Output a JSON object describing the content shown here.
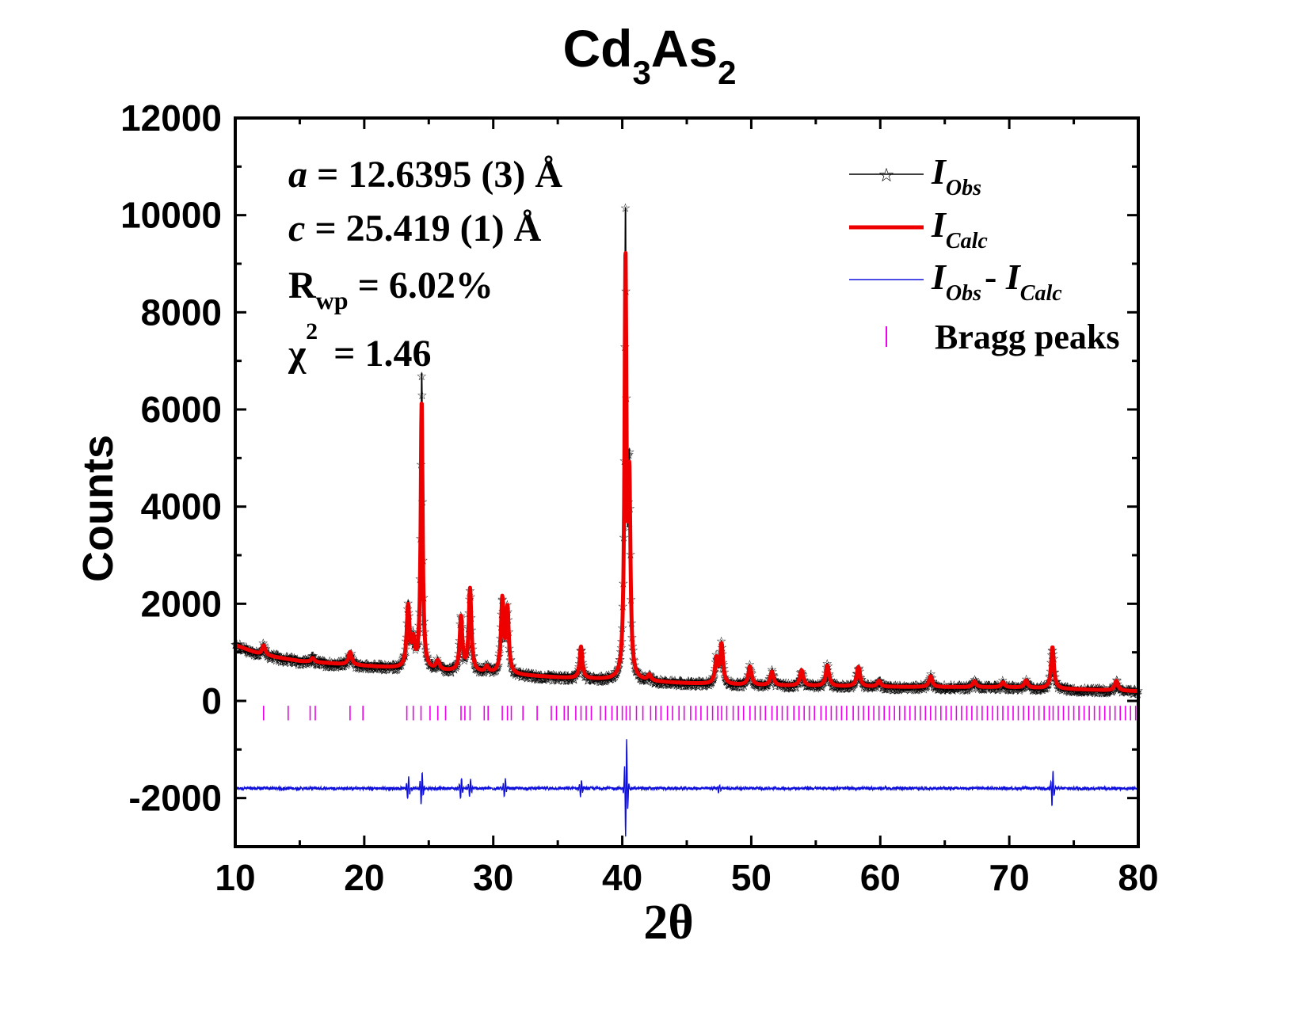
{
  "chart_data": {
    "type": "line",
    "title": {
      "base1": "Cd",
      "sub1": "3",
      "base2": "As",
      "sub2": "2"
    },
    "xlabel": "2θ",
    "ylabel": "Counts",
    "xlim": [
      10,
      80
    ],
    "ylim": [
      -3000,
      12000
    ],
    "x_ticks": [
      10,
      20,
      30,
      40,
      50,
      60,
      70,
      80
    ],
    "y_ticks": [
      -2000,
      0,
      2000,
      4000,
      6000,
      8000,
      10000,
      12000
    ],
    "grid": false,
    "legend_position": "top-right",
    "annotations": [
      {
        "var": "a",
        "text": " = 12.6395 (3) Å"
      },
      {
        "var": "c",
        "text": " = 25.419 (1) Å"
      },
      {
        "base": "R",
        "sub": "wp",
        "text": " = 6.02%"
      },
      {
        "base": "χ",
        "sup": "2",
        "text": " = 1.46"
      }
    ],
    "background": [
      [
        10,
        1150
      ],
      [
        12,
        950
      ],
      [
        15,
        820
      ],
      [
        20,
        720
      ],
      [
        25,
        630
      ],
      [
        30,
        560
      ],
      [
        35,
        480
      ],
      [
        40,
        420
      ],
      [
        45,
        360
      ],
      [
        50,
        320
      ],
      [
        60,
        290
      ],
      [
        70,
        280
      ],
      [
        80,
        200
      ]
    ],
    "peaks": [
      {
        "x": 12.2,
        "h": 200,
        "w": 0.15
      },
      {
        "x": 16.0,
        "h": 80,
        "w": 0.15
      },
      {
        "x": 18.9,
        "h": 260,
        "w": 0.15
      },
      {
        "x": 23.4,
        "h": 1250,
        "w": 0.13
      },
      {
        "x": 23.8,
        "h": 500,
        "w": 0.13
      },
      {
        "x": 24.45,
        "h": 5500,
        "w": 0.09
      },
      {
        "x": 25.7,
        "h": 180,
        "w": 0.15
      },
      {
        "x": 27.5,
        "h": 1100,
        "w": 0.12
      },
      {
        "x": 28.2,
        "h": 1700,
        "w": 0.12
      },
      {
        "x": 29.5,
        "h": 120,
        "w": 0.15
      },
      {
        "x": 30.7,
        "h": 1500,
        "w": 0.12
      },
      {
        "x": 31.1,
        "h": 1300,
        "w": 0.12
      },
      {
        "x": 36.8,
        "h": 650,
        "w": 0.12
      },
      {
        "x": 40.25,
        "h": 8500,
        "w": 0.09
      },
      {
        "x": 40.55,
        "h": 3800,
        "w": 0.1
      },
      {
        "x": 42.1,
        "h": 120,
        "w": 0.15
      },
      {
        "x": 47.3,
        "h": 500,
        "w": 0.13
      },
      {
        "x": 47.7,
        "h": 800,
        "w": 0.13
      },
      {
        "x": 49.9,
        "h": 380,
        "w": 0.15
      },
      {
        "x": 51.6,
        "h": 280,
        "w": 0.15
      },
      {
        "x": 53.9,
        "h": 320,
        "w": 0.15
      },
      {
        "x": 55.9,
        "h": 420,
        "w": 0.15
      },
      {
        "x": 58.3,
        "h": 400,
        "w": 0.15
      },
      {
        "x": 59.9,
        "h": 120,
        "w": 0.15
      },
      {
        "x": 63.9,
        "h": 220,
        "w": 0.15
      },
      {
        "x": 67.3,
        "h": 120,
        "w": 0.15
      },
      {
        "x": 69.5,
        "h": 100,
        "w": 0.15
      },
      {
        "x": 71.3,
        "h": 150,
        "w": 0.15
      },
      {
        "x": 73.35,
        "h": 850,
        "w": 0.13
      },
      {
        "x": 78.3,
        "h": 200,
        "w": 0.15
      }
    ],
    "diff_baseline": -1800,
    "diff_spikes": [
      {
        "x": 23.4,
        "amp": 250
      },
      {
        "x": 24.45,
        "amp": 350
      },
      {
        "x": 27.5,
        "amp": 250
      },
      {
        "x": 28.2,
        "amp": 200
      },
      {
        "x": 30.9,
        "amp": 200
      },
      {
        "x": 36.8,
        "amp": 200
      },
      {
        "x": 40.3,
        "amp": 1100
      },
      {
        "x": 47.5,
        "amp": 80
      },
      {
        "x": 73.35,
        "amp": 400
      }
    ],
    "bragg_y": [
      -400,
      -100
    ],
    "bragg_positions": [
      12.2,
      14.1,
      15.8,
      16.2,
      18.9,
      19.9,
      23.3,
      23.8,
      24.4,
      25.1,
      25.7,
      26.3,
      27.5,
      27.8,
      28.2,
      29.3,
      29.6,
      30.7,
      31.1,
      31.4,
      32.3,
      33.4,
      34.5,
      34.9,
      35.5,
      35.8,
      36.4,
      36.8,
      37.2,
      37.6,
      38.3,
      38.7,
      39.2,
      39.6,
      40.0,
      40.3,
      40.6,
      41.1,
      41.6,
      42.2,
      42.6,
      43.0,
      43.5,
      43.9,
      44.4,
      44.8,
      45.3,
      45.7,
      46.1,
      46.6,
      47.0,
      47.4,
      47.7,
      48.1,
      48.6,
      49.0,
      49.4,
      49.9,
      50.3,
      50.7,
      51.1,
      51.6,
      52.0,
      52.4,
      52.8,
      53.3,
      53.7,
      54.1,
      54.5,
      54.9,
      55.4,
      55.8,
      56.2,
      56.6,
      57.0,
      57.4,
      57.9,
      58.3,
      58.7,
      59.1,
      59.5,
      59.9,
      60.3,
      60.7,
      61.1,
      61.5,
      61.9,
      62.3,
      62.7,
      63.1,
      63.5,
      63.9,
      64.3,
      64.7,
      65.1,
      65.5,
      65.9,
      66.3,
      66.7,
      67.1,
      67.5,
      67.9,
      68.3,
      68.7,
      69.1,
      69.5,
      69.9,
      70.3,
      70.7,
      71.1,
      71.5,
      71.9,
      72.3,
      72.7,
      73.1,
      73.4,
      73.8,
      74.2,
      74.6,
      75.0,
      75.4,
      75.8,
      76.2,
      76.6,
      77.0,
      77.4,
      77.8,
      78.2,
      78.6,
      79.0,
      79.4,
      79.8
    ],
    "series": [
      {
        "name_base": "I",
        "name_sub": "Obs",
        "color": "#000000",
        "marker": "☆"
      },
      {
        "name_base": "I",
        "name_sub": "Calc",
        "color": "#ee0000"
      },
      {
        "name_base": "I",
        "name_sub": "Obs",
        "name_mid": "- ",
        "name_base2": "I",
        "name_sub2": "Calc",
        "color": "#1010dd"
      },
      {
        "name": "Bragg peaks",
        "color": "#ee00ee"
      }
    ]
  }
}
